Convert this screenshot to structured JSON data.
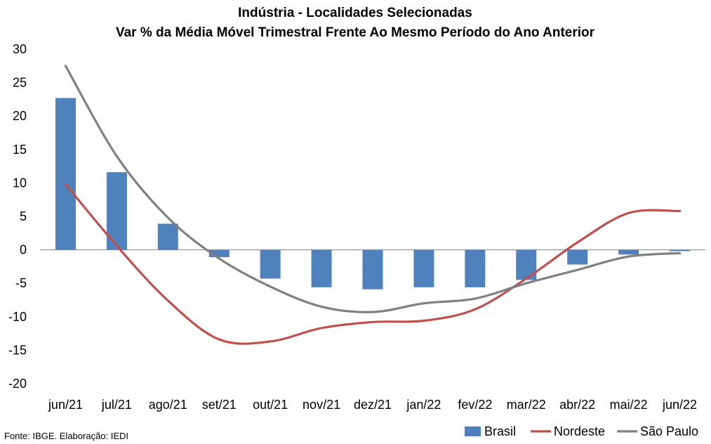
{
  "chart_data": {
    "type": "bar",
    "title": "Indústria - Localidades Selecionadas",
    "subtitle": "Var % da Média Móvel Trimestral Frente Ao Mesmo Período do Ano Anterior",
    "categories": [
      "jun/21",
      "jul/21",
      "ago/21",
      "set/21",
      "out/21",
      "nov/21",
      "dez/21",
      "jan/22",
      "fev/22",
      "mar/22",
      "abr/22",
      "mai/22",
      "jun/22"
    ],
    "ylim": [
      -20,
      30
    ],
    "yticks": [
      30,
      25,
      20,
      15,
      10,
      5,
      0,
      -5,
      -10,
      -15,
      -20
    ],
    "grid": false,
    "legend_position": "bottom-right",
    "series": [
      {
        "name": "Brasil",
        "kind": "bar",
        "color": "#4F81BD",
        "values": [
          22.7,
          11.6,
          3.9,
          -1.1,
          -4.3,
          -5.6,
          -5.9,
          -5.6,
          -5.6,
          -4.5,
          -2.2,
          -0.7,
          -0.2
        ]
      },
      {
        "name": "Nordeste",
        "kind": "line",
        "color": "#C0504D",
        "values": [
          9.8,
          0.6,
          -7.6,
          -13.4,
          -13.7,
          -11.7,
          -10.8,
          -10.6,
          -8.9,
          -4.3,
          1.1,
          5.5,
          5.8
        ]
      },
      {
        "name": "São Paulo",
        "kind": "line",
        "color": "#808080",
        "values": [
          27.5,
          14.0,
          4.8,
          -1.3,
          -5.5,
          -8.5,
          -9.3,
          -8.0,
          -7.3,
          -5.0,
          -3.0,
          -1.0,
          -0.5
        ]
      }
    ]
  },
  "footer": {
    "source": "Fonte: IBGE. Elaboração: IEDI"
  }
}
